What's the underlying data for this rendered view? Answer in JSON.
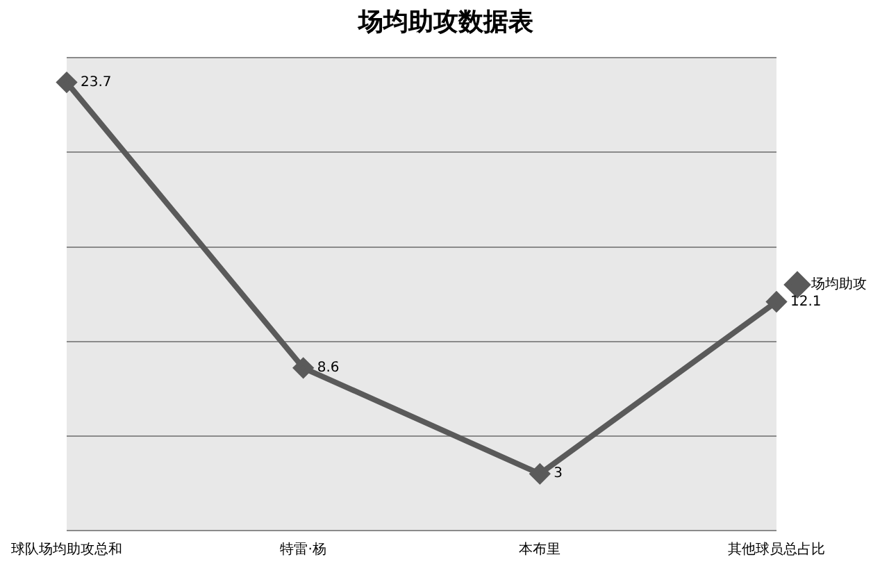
{
  "chart_data": {
    "type": "line",
    "title": "场均助攻数据表",
    "categories": [
      "球队场均助攻总和",
      "特雷·杨",
      "本布里",
      "其他球员总占比"
    ],
    "series": [
      {
        "name": "场均助攻",
        "color": "#5a5a5a",
        "values": [
          23.7,
          8.6,
          3,
          12.1
        ]
      }
    ],
    "ylim": [
      0,
      25
    ],
    "yticks": [
      0,
      5,
      10,
      15,
      20,
      25
    ],
    "grid": "y",
    "tick_labels": "x",
    "legend": "right",
    "marker": "diamond",
    "line_style": "solid",
    "data_labels": true
  }
}
